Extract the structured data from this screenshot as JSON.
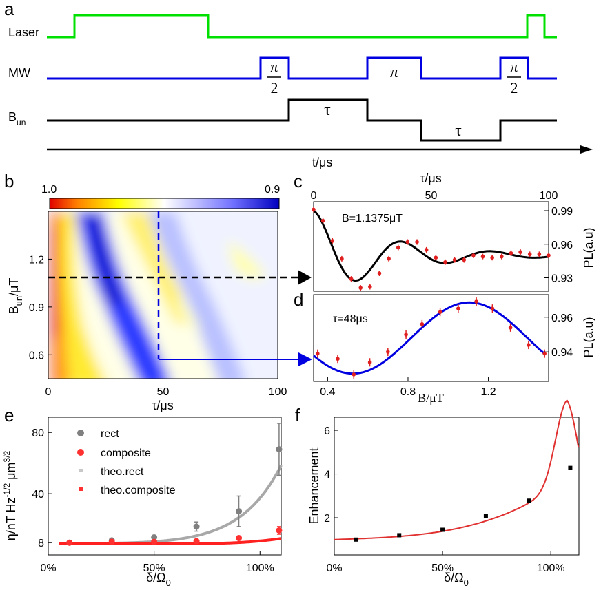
{
  "panel_letters": [
    "a",
    "b",
    "c",
    "d",
    "e",
    "f"
  ],
  "panel_a": {
    "rows": [
      {
        "label": "Laser",
        "color": "#00e000"
      },
      {
        "label": "MW",
        "color": "#0000e0"
      },
      {
        "label": "B",
        "label_sub": "un",
        "color": "#000000"
      }
    ],
    "pulse_labels": {
      "pi_num": "π",
      "pi_den": "2",
      "pi": "π",
      "tau": "τ"
    },
    "time_axis_label": "t/μs"
  },
  "chart_data": [
    {
      "id": "b",
      "type": "heatmap",
      "xlabel": "τ/μs",
      "ylabel": "B",
      "ylabel_sub": "un",
      "ylabel_unit": "/μT",
      "xlim": [
        0,
        100
      ],
      "ylim": [
        0.45,
        1.5
      ],
      "xticks": [
        "0",
        "50",
        "100"
      ],
      "yticks": [
        "0.6",
        "0.9",
        "1.2"
      ],
      "colorbar": {
        "min_label": "1.0",
        "max_label": "0.9",
        "colors": [
          "#e00000",
          "#ff8000",
          "#ffff00",
          "#ffffff",
          "#6060ff",
          "#0000cc"
        ]
      },
      "dashed_lines": {
        "tau": 48,
        "B": 1.09
      }
    },
    {
      "id": "c",
      "type": "scatter",
      "annotation": "B=1.1375μT",
      "xlabel": "τ/μs",
      "ylabel": "PL(a.u)",
      "xlim": [
        0,
        100
      ],
      "ylim": [
        0.918,
        0.998
      ],
      "xticks": [
        "0",
        "50",
        "100"
      ],
      "yticks": [
        "0.93",
        "0.96",
        "0.99"
      ],
      "x": [
        0,
        4,
        8,
        12,
        16,
        20,
        24,
        28,
        32,
        36,
        40,
        44,
        48,
        52,
        56,
        60,
        64,
        68,
        72,
        76,
        80,
        84,
        88,
        92,
        96,
        100
      ],
      "y": [
        0.991,
        0.981,
        0.963,
        0.947,
        0.929,
        0.921,
        0.922,
        0.934,
        0.947,
        0.957,
        0.962,
        0.962,
        0.955,
        0.948,
        0.944,
        0.946,
        0.946,
        0.95,
        0.949,
        0.948,
        0.949,
        0.952,
        0.953,
        0.951,
        0.951,
        0.95
      ],
      "fit_color": "#000000",
      "point_color": "#e02020"
    },
    {
      "id": "d",
      "type": "scatter",
      "annotation": "τ=48μs",
      "xlabel": "B/μT",
      "ylabel": "PL(a.u)",
      "xlim": [
        0.33,
        1.5
      ],
      "ylim": [
        0.923,
        0.973
      ],
      "xticks": [
        "0.4",
        "0.8",
        "1.2"
      ],
      "yticks": [
        "0.94",
        "0.96"
      ],
      "x": [
        0.35,
        0.45,
        0.53,
        0.61,
        0.7,
        0.79,
        0.87,
        0.96,
        1.05,
        1.14,
        1.22,
        1.31,
        1.4,
        1.48
      ],
      "y": [
        0.939,
        0.936,
        0.927,
        0.934,
        0.94,
        0.95,
        0.956,
        0.963,
        0.965,
        0.969,
        0.965,
        0.954,
        0.944,
        0.939
      ],
      "fit_color": "#0000e0",
      "point_color": "#e02020"
    },
    {
      "id": "e",
      "type": "scatter",
      "xlabel": "δ/Ω",
      "xlabel_sub": "0",
      "ylabel": "η/nT Hz",
      "ylabel_sup1": "-1/2",
      "ylabel_mid": " μm",
      "ylabel_sup2": "3/2",
      "xlim": [
        0,
        1.1
      ],
      "ylim": [
        0,
        90
      ],
      "xticks": [
        "0%",
        "50%",
        "100%"
      ],
      "yticks": [
        "8",
        "40",
        "80"
      ],
      "legend": [
        {
          "name": "rect",
          "color": "#808080",
          "marker": "circle"
        },
        {
          "name": "composite",
          "color": "#ff3030",
          "marker": "circle"
        },
        {
          "name": "theo.rect",
          "color": "#c8c8c8",
          "marker": "square"
        },
        {
          "name": "theo.composite",
          "color": "#ff3030",
          "marker": "square"
        }
      ],
      "series": [
        {
          "name": "rect",
          "x": [
            0.1,
            0.3,
            0.5,
            0.7,
            0.9,
            1.09
          ],
          "y": [
            8.0,
            9.5,
            11.5,
            18.5,
            28.5,
            69.0
          ],
          "err": [
            0.5,
            0.8,
            1.0,
            3.0,
            10.0,
            17.0
          ]
        },
        {
          "name": "composite",
          "x": [
            0.1,
            0.3,
            0.5,
            0.7,
            0.9,
            1.09
          ],
          "y": [
            8.0,
            8.6,
            8.5,
            9.0,
            11.0,
            16.0
          ],
          "err": [
            0.4,
            0.5,
            0.6,
            0.7,
            1.2,
            2.5
          ]
        }
      ]
    },
    {
      "id": "f",
      "type": "scatter",
      "ylabel": "Enhancement",
      "xlabel": "δ/Ω",
      "xlabel_sub": "0",
      "xlim": [
        0,
        1.13
      ],
      "ylim": [
        0.3,
        6.6
      ],
      "xticks": [
        "0%",
        "50%",
        "100%"
      ],
      "yticks": [
        "2",
        "4",
        "6"
      ],
      "x": [
        0.1,
        0.3,
        0.5,
        0.7,
        0.9,
        1.09
      ],
      "y": [
        1.0,
        1.2,
        1.45,
        2.08,
        2.78,
        4.28
      ],
      "point_color": "#000000",
      "curve_color": "#e03030"
    }
  ]
}
